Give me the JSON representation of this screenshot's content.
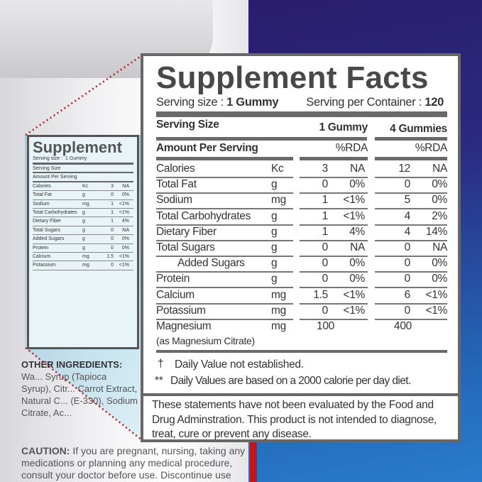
{
  "label": {
    "title": "Supplement Facts",
    "serving_size_label": "Serving size :",
    "serving_size_value": "1 Gummy",
    "servings_per_container_label": "Serving per Container :",
    "servings_per_container_value": "120",
    "serving_size_header": "Serving Size",
    "col1_header": "1 Gummy",
    "col2_header": "4 Gummies",
    "amount_per_serving": "Amount Per Serving",
    "rda_header": "%RDA",
    "rows": [
      {
        "name": "Calories",
        "unit": "Kc",
        "v1": "3",
        "p1": "NA",
        "v2": "12",
        "p2": "NA"
      },
      {
        "name": "Total Fat",
        "unit": "g",
        "v1": "0",
        "p1": "0%",
        "v2": "0",
        "p2": "0%"
      },
      {
        "name": "Sodium",
        "unit": "mg",
        "v1": "1",
        "p1": "<1%",
        "v2": "5",
        "p2": "0%"
      },
      {
        "name": "Total Carbohydrates",
        "unit": "g",
        "v1": "1",
        "p1": "<1%",
        "v2": "4",
        "p2": "2%"
      },
      {
        "name": "Dietary Fiber",
        "unit": "g",
        "v1": "1",
        "p1": "4%",
        "v2": "4",
        "p2": "14%"
      },
      {
        "name": "Total Sugars",
        "unit": "g",
        "v1": "0",
        "p1": "NA",
        "v2": "0",
        "p2": "NA"
      },
      {
        "name": "Added Sugars",
        "unit": "g",
        "v1": "0",
        "p1": "0%",
        "v2": "0",
        "p2": "0%"
      },
      {
        "name": "Protein",
        "unit": "g",
        "v1": "0",
        "p1": "0%",
        "v2": "0",
        "p2": "0%"
      },
      {
        "name": "Calcium",
        "unit": "mg",
        "v1": "1.5",
        "p1": "<1%",
        "v2": "6",
        "p2": "<1%"
      },
      {
        "name": "Potassium",
        "unit": "mg",
        "v1": "0",
        "p1": "<1%",
        "v2": "0",
        "p2": "<1%"
      }
    ],
    "magnesium": {
      "name": "Magnesium",
      "sub": "(as Magnesium Citrate)",
      "unit": "mg",
      "v1": "100",
      "v2": "400"
    },
    "footnote1_symbol": "†",
    "footnote1": "Daily Value not established.",
    "footnote2_symbol": "**",
    "footnote2": "Daily Values are based on a 2000 calorie per day diet.",
    "disclaimer": "These statements have not been evaluated by the Food and Drug Adminstration. This product is not intended to diagnose, treat, cure or prevent any disease."
  },
  "bottle": {
    "mini_title": "Supplement",
    "other_ingredients_label": "OTHER INGREDIENTS:",
    "other_ingredients_text": "Wa... Syrup (Tapioca Syrup), Citr... Carrot Extract, Natural C... (E-330), Sodium Citrate, Ac...",
    "caution_label": "CAUTION:",
    "caution_text": "If you are pregnant, nursing, taking any medications or planning any medical procedure, consult your doctor before use. Discontinue use"
  },
  "colors": {
    "border": "#676767",
    "text": "#333333",
    "background_top": "#2b1a68",
    "background_bottom": "#2a7ccc",
    "cone": "#9fd6e8",
    "dots": "#c0161c"
  }
}
